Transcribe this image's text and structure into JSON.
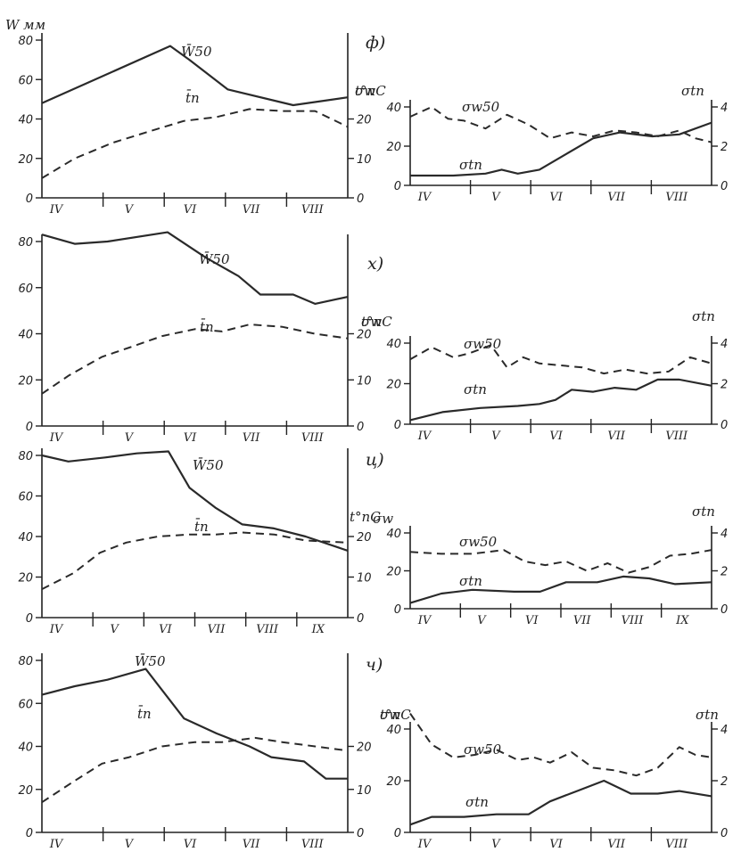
{
  "chart_data": [
    {
      "type": "line",
      "panel": "ф)",
      "side": "left",
      "ylabel": "W мм",
      "ylim": [
        0,
        80
      ],
      "yticks": [
        0,
        20,
        40,
        60,
        80
      ],
      "y2label": "t°nC",
      "y2lim": [
        0,
        40
      ],
      "y2ticks": [
        0,
        10,
        20
      ],
      "x_months": [
        "IV",
        "V",
        "VI",
        "VII",
        "VIII"
      ],
      "xlim": [
        0,
        5.6
      ],
      "series": [
        {
          "name": "W̄50",
          "style": "solid",
          "axis": "left",
          "x": [
            0,
            2.35,
            2.7,
            3.4,
            4.6,
            5.6
          ],
          "y": [
            48,
            77,
            70,
            55,
            47,
            51
          ]
        },
        {
          "name": "t̄n",
          "style": "dashed",
          "axis": "right",
          "x": [
            0,
            0.6,
            1.3,
            2.0,
            2.6,
            3.2,
            3.8,
            4.4,
            5.0,
            5.6
          ],
          "y": [
            5,
            10,
            14,
            17,
            19.5,
            20.5,
            22.5,
            22,
            22,
            18
          ]
        }
      ]
    },
    {
      "type": "line",
      "panel": "ф)",
      "side": "right",
      "ylabel": "σw",
      "ylim": [
        0,
        40
      ],
      "yticks": [
        0,
        20,
        40
      ],
      "y2label": "σtn",
      "y2lim": [
        0,
        4
      ],
      "y2ticks": [
        0,
        2,
        4
      ],
      "x_months": [
        "IV",
        "V",
        "VI",
        "VII",
        "VIII"
      ],
      "xlim": [
        0,
        5.6
      ],
      "series": [
        {
          "name": "σw50",
          "style": "solid",
          "axis": "left",
          "x": [
            0,
            0.8,
            1.4,
            1.7,
            2.0,
            2.4,
            2.9,
            3.4,
            3.9,
            4.5,
            5.0,
            5.6
          ],
          "y": [
            5,
            5,
            6,
            8,
            6,
            8,
            16,
            24,
            27,
            25,
            26,
            32
          ]
        },
        {
          "name": "σtn",
          "style": "dashed",
          "axis": "right",
          "x": [
            0,
            0.4,
            0.7,
            1.0,
            1.4,
            1.8,
            2.2,
            2.6,
            3.0,
            3.4,
            3.8,
            4.2,
            4.6,
            5.0,
            5.3,
            5.6
          ],
          "y": [
            3.5,
            4.0,
            3.4,
            3.3,
            2.9,
            3.6,
            3.1,
            2.4,
            2.7,
            2.5,
            2.8,
            2.7,
            2.5,
            2.8,
            2.4,
            2.2
          ]
        }
      ]
    },
    {
      "type": "line",
      "panel": "х)",
      "side": "left",
      "ylabel": "",
      "ylim": [
        0,
        80
      ],
      "yticks": [
        0,
        20,
        40,
        60,
        80
      ],
      "y2label": "t°nC",
      "y2lim": [
        0,
        40
      ],
      "y2ticks": [
        0,
        10,
        20
      ],
      "x_months": [
        "IV",
        "V",
        "VI",
        "VII",
        "VIII"
      ],
      "xlim": [
        0,
        5.6
      ],
      "series": [
        {
          "name": "W̄50",
          "style": "solid",
          "axis": "left",
          "x": [
            0,
            0.6,
            1.2,
            2.3,
            3.0,
            3.6,
            4.0,
            4.6,
            5.0,
            5.6
          ],
          "y": [
            83,
            79,
            80,
            84,
            73,
            65,
            57,
            57,
            53,
            56
          ]
        },
        {
          "name": "t̄n",
          "style": "dashed",
          "axis": "right",
          "x": [
            0,
            0.5,
            1.1,
            1.6,
            2.2,
            2.8,
            3.3,
            3.8,
            4.4,
            5.0,
            5.6
          ],
          "y": [
            7,
            11,
            15,
            17,
            19.5,
            21,
            20.5,
            22,
            21.5,
            20,
            19
          ]
        }
      ]
    },
    {
      "type": "line",
      "panel": "х)",
      "side": "right",
      "ylabel": "σw",
      "ylim": [
        0,
        40
      ],
      "yticks": [
        0,
        20,
        40
      ],
      "y2label": "σtn",
      "y2lim": [
        0,
        4
      ],
      "y2ticks": [
        0,
        2,
        4
      ],
      "x_months": [
        "IV",
        "V",
        "VI",
        "VII",
        "VIII"
      ],
      "xlim": [
        0,
        5.6
      ],
      "series": [
        {
          "name": "σw50",
          "style": "solid",
          "axis": "left",
          "x": [
            0,
            0.6,
            1.3,
            2.0,
            2.4,
            2.7,
            3.0,
            3.4,
            3.8,
            4.2,
            4.6,
            5.0,
            5.6
          ],
          "y": [
            2,
            6,
            8,
            9,
            10,
            12,
            17,
            16,
            18,
            17,
            22,
            22,
            19
          ]
        },
        {
          "name": "σtn",
          "style": "dashed",
          "axis": "right",
          "x": [
            0,
            0.4,
            0.8,
            1.1,
            1.5,
            1.8,
            2.1,
            2.4,
            2.8,
            3.2,
            3.6,
            4.0,
            4.4,
            4.8,
            5.2,
            5.6
          ],
          "y": [
            3.2,
            3.8,
            3.3,
            3.5,
            3.9,
            2.8,
            3.3,
            3.0,
            2.9,
            2.8,
            2.5,
            2.7,
            2.5,
            2.6,
            3.3,
            3.0
          ]
        }
      ]
    },
    {
      "type": "line",
      "panel": "ц)",
      "side": "left",
      "ylabel": "",
      "ylim": [
        0,
        80
      ],
      "yticks": [
        0,
        20,
        40,
        60,
        80
      ],
      "y2label": "t°nC",
      "y2lim": [
        0,
        40
      ],
      "y2ticks": [
        0,
        10,
        20
      ],
      "x_months": [
        "IV",
        "V",
        "VI",
        "VII",
        "VIII",
        "IX"
      ],
      "xlim": [
        0,
        5.8
      ],
      "series": [
        {
          "name": "W̄50",
          "style": "solid",
          "axis": "left",
          "x": [
            0,
            0.5,
            1.2,
            1.8,
            2.4,
            2.8,
            3.3,
            3.8,
            4.4,
            5.0,
            5.8
          ],
          "y": [
            80,
            77,
            79,
            81,
            82,
            64,
            54,
            46,
            44,
            40,
            33
          ]
        },
        {
          "name": "t̄n",
          "style": "dashed",
          "axis": "right",
          "x": [
            0,
            0.6,
            1.1,
            1.6,
            2.2,
            2.8,
            3.3,
            3.8,
            4.4,
            5.0,
            5.8
          ],
          "y": [
            7,
            11,
            16,
            18.5,
            20,
            20.5,
            20.5,
            21,
            20.5,
            19,
            18.5
          ]
        }
      ]
    },
    {
      "type": "line",
      "panel": "ц)",
      "side": "right",
      "ylabel": "σw",
      "ylim": [
        0,
        40
      ],
      "yticks": [
        0,
        20,
        40
      ],
      "y2label": "σtn",
      "y2lim": [
        0,
        4
      ],
      "y2ticks": [
        0,
        2,
        4
      ],
      "x_months": [
        "IV",
        "V",
        "VI",
        "VII",
        "VIII",
        "IX"
      ],
      "xlim": [
        0,
        5.8
      ],
      "series": [
        {
          "name": "σw50",
          "style": "solid",
          "axis": "left",
          "x": [
            0,
            0.6,
            1.2,
            2.0,
            2.5,
            3.0,
            3.6,
            4.1,
            4.6,
            5.1,
            5.8
          ],
          "y": [
            3,
            8,
            10,
            9,
            9,
            14,
            14,
            17,
            16,
            13,
            14
          ]
        },
        {
          "name": "σtn",
          "style": "dashed",
          "axis": "right",
          "x": [
            0,
            0.6,
            1.2,
            1.8,
            2.2,
            2.6,
            3.0,
            3.4,
            3.8,
            4.2,
            4.6,
            5.0,
            5.4,
            5.8
          ],
          "y": [
            3.0,
            2.9,
            2.9,
            3.1,
            2.5,
            2.3,
            2.5,
            2.0,
            2.4,
            1.9,
            2.2,
            2.8,
            2.9,
            3.1
          ]
        }
      ]
    },
    {
      "type": "line",
      "panel": "ч)",
      "side": "left",
      "ylabel": "",
      "ylim": [
        0,
        80
      ],
      "yticks": [
        0,
        20,
        40,
        60,
        80
      ],
      "y2label": "t°nC",
      "y2lim": [
        0,
        40
      ],
      "y2ticks": [
        0,
        10,
        20
      ],
      "x_months": [
        "IV",
        "V",
        "VI",
        "VII",
        "VIII"
      ],
      "xlim": [
        0,
        5.6
      ],
      "series": [
        {
          "name": "W̄50",
          "style": "solid",
          "axis": "left",
          "x": [
            0,
            0.6,
            1.2,
            1.9,
            2.6,
            3.2,
            3.8,
            4.2,
            4.8,
            5.2,
            5.6
          ],
          "y": [
            64,
            68,
            71,
            76,
            53,
            46,
            40,
            35,
            33,
            25,
            25
          ]
        },
        {
          "name": "t̄n",
          "style": "dashed",
          "axis": "right",
          "x": [
            0,
            0.6,
            1.1,
            1.6,
            2.2,
            2.8,
            3.3,
            3.9,
            4.4,
            5.0,
            5.6
          ],
          "y": [
            7,
            12,
            16,
            17.5,
            20,
            21,
            21,
            22,
            21,
            20,
            19
          ]
        }
      ]
    },
    {
      "type": "line",
      "panel": "ч)",
      "side": "right",
      "ylabel": "σw",
      "ylim": [
        0,
        40
      ],
      "yticks": [
        0,
        20,
        40
      ],
      "y2label": "σtn",
      "y2lim": [
        0,
        4
      ],
      "y2ticks": [
        0,
        2,
        4
      ],
      "x_months": [
        "IV",
        "V",
        "VI",
        "VII",
        "VIII"
      ],
      "xlim": [
        0,
        5.6
      ],
      "series": [
        {
          "name": "σw50",
          "style": "solid",
          "axis": "left",
          "x": [
            0,
            0.4,
            1.0,
            1.6,
            2.2,
            2.6,
            3.1,
            3.6,
            4.1,
            4.6,
            5.0,
            5.6
          ],
          "y": [
            3,
            6,
            6,
            7,
            7,
            12,
            16,
            20,
            15,
            15,
            16,
            14
          ]
        },
        {
          "name": "σtn",
          "style": "dashed",
          "axis": "right",
          "x": [
            0,
            0.4,
            0.8,
            1.2,
            1.6,
            2.0,
            2.3,
            2.6,
            3.0,
            3.4,
            3.8,
            4.2,
            4.6,
            5.0,
            5.3,
            5.6
          ],
          "y": [
            4.6,
            3.4,
            2.9,
            3.0,
            3.2,
            2.8,
            2.9,
            2.7,
            3.1,
            2.5,
            2.4,
            2.2,
            2.5,
            3.3,
            3.0,
            2.9
          ]
        }
      ]
    }
  ]
}
